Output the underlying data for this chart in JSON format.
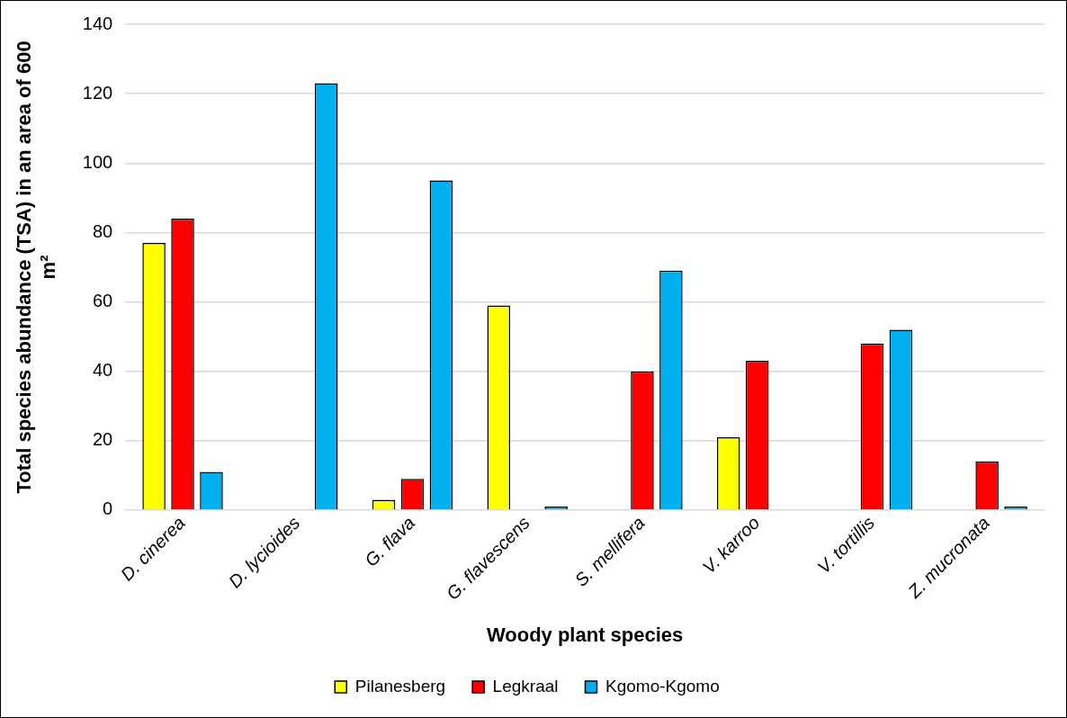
{
  "chart_data": {
    "type": "bar",
    "xlabel": "Woody plant species",
    "ylabel": "Total species abundance (TSA) in an area of 600 m²",
    "categories": [
      "D. cinerea",
      "D. lycioides",
      "G. flava",
      "G. flavescens",
      "S. mellifera",
      "V. karroo",
      "V. tortillis",
      "Z. mucronata"
    ],
    "series": [
      {
        "name": "Pilanesberg",
        "color": "#ffff00",
        "values": [
          77,
          0,
          3,
          59,
          0,
          21,
          0,
          0
        ]
      },
      {
        "name": "Legkraal",
        "color": "#ff0000",
        "values": [
          84,
          0,
          9,
          0,
          40,
          43,
          48,
          14
        ]
      },
      {
        "name": "Kgomo-Kgomo",
        "color": "#00b0f0",
        "values": [
          11,
          123,
          95,
          1,
          69,
          0,
          52,
          1
        ]
      }
    ],
    "ylim": [
      0,
      140
    ],
    "yticks": [
      0,
      20,
      40,
      60,
      80,
      100,
      120,
      140
    ],
    "grid": "y",
    "legend": "bottom"
  }
}
